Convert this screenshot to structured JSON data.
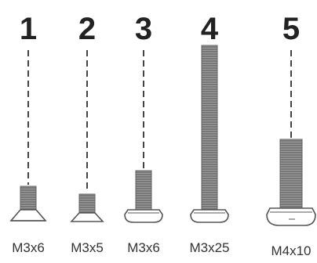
{
  "diagram": {
    "screws": [
      {
        "number": "1",
        "size": "M3x6",
        "head": "countersunk"
      },
      {
        "number": "2",
        "size": "M3x5",
        "head": "countersunk"
      },
      {
        "number": "3",
        "size": "M3x6",
        "head": "pan"
      },
      {
        "number": "4",
        "size": "M3x25",
        "head": "pan"
      },
      {
        "number": "5",
        "size": "M4x10",
        "head": "pan"
      }
    ]
  }
}
